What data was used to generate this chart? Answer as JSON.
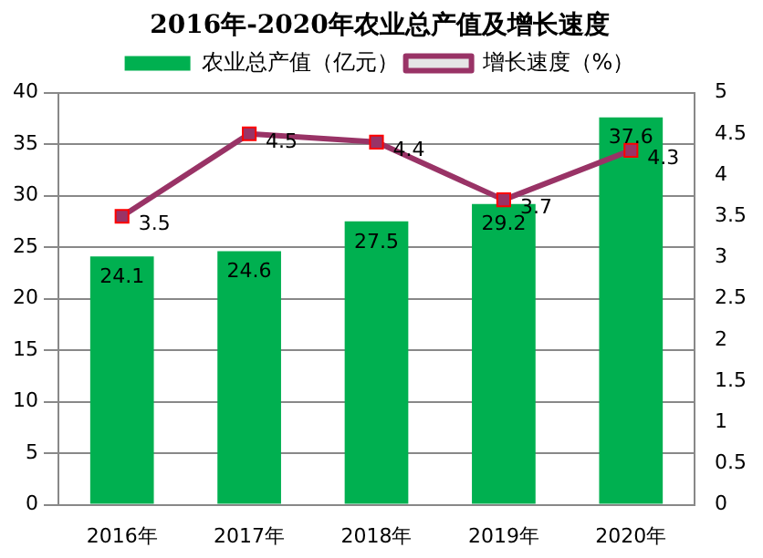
{
  "chart_data": {
    "type": "bar",
    "title": "2016年-2020年农业总产值及增长速度",
    "categories": [
      "2016年",
      "2017年",
      "2018年",
      "2019年",
      "2020年"
    ],
    "series": [
      {
        "name": "农业总产值（亿元）",
        "color": "#00b050",
        "values": [
          24.1,
          24.6,
          27.5,
          29.2,
          37.6
        ]
      },
      {
        "name": "增长速度（%）",
        "type": "line",
        "axis": "y2",
        "color": "#993366",
        "values": [
          3.5,
          4.5,
          4.4,
          3.7,
          4.3
        ]
      }
    ],
    "ylim": [
      0,
      40
    ],
    "yticks": [
      0,
      5,
      10,
      15,
      20,
      25,
      30,
      35,
      40
    ],
    "y2lim": [
      0,
      5
    ],
    "y2ticks": [
      0,
      0.5,
      1,
      1.5,
      2,
      2.5,
      3,
      3.5,
      4,
      4.5,
      5
    ],
    "grid": "y",
    "legend": "top",
    "marker": "square",
    "data_labels": true
  }
}
